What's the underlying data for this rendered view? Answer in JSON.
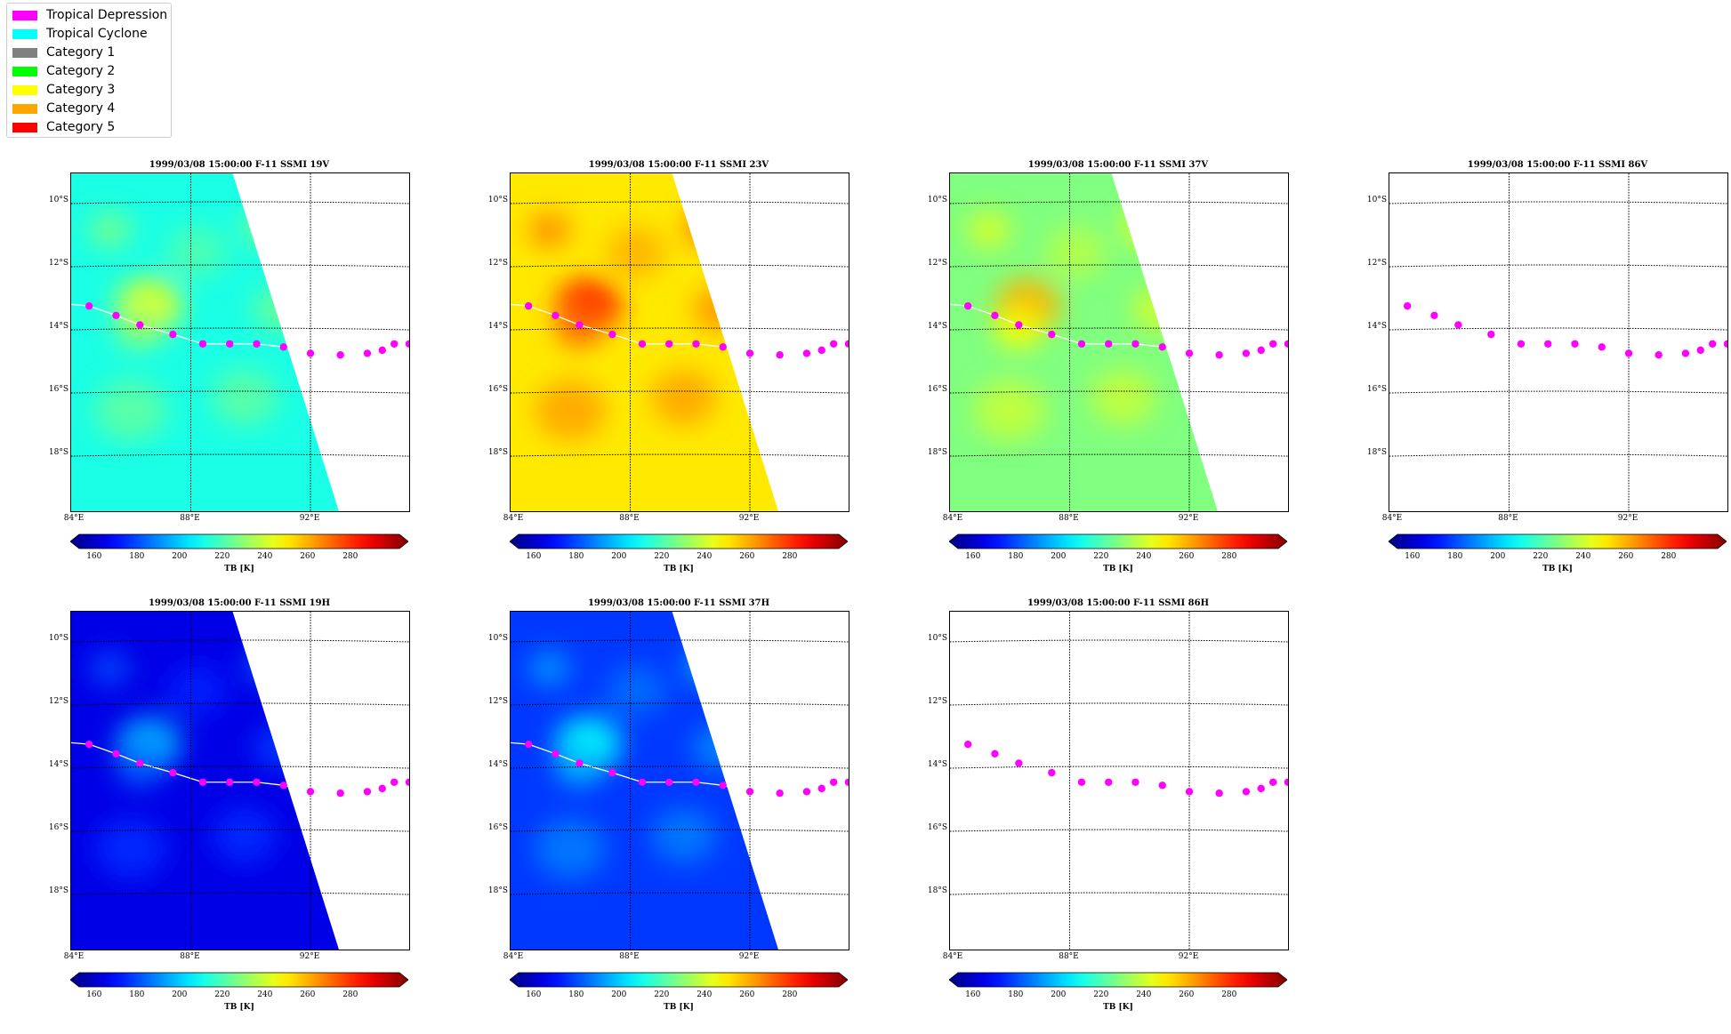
{
  "legend": {
    "items": [
      {
        "label": "Tropical Depression",
        "color": "#ff00ff"
      },
      {
        "label": "Tropical Cyclone",
        "color": "#00ffff"
      },
      {
        "label": "Category 1",
        "color": "#808080"
      },
      {
        "label": "Category 2",
        "color": "#00ff00"
      },
      {
        "label": "Category 3",
        "color": "#ffff00"
      },
      {
        "label": "Category 4",
        "color": "#ffa500"
      },
      {
        "label": "Category 5",
        "color": "#ff0000"
      }
    ]
  },
  "map": {
    "lat_labels": [
      "10°S",
      "12°S",
      "14°S",
      "16°S",
      "18°S"
    ],
    "lon_labels": [
      "84°E",
      "88°E",
      "92°E"
    ],
    "lon_range": [
      84,
      95.3
    ],
    "lat_range": [
      -19.8,
      -9.1
    ],
    "lat_grid": [
      -10,
      -12,
      -14,
      -16,
      -18
    ],
    "lon_grid": [
      88,
      92
    ],
    "track": [
      {
        "lon": 84.6,
        "lat": -13.3
      },
      {
        "lon": 85.5,
        "lat": -13.6
      },
      {
        "lon": 86.3,
        "lat": -13.9
      },
      {
        "lon": 87.4,
        "lat": -14.2
      },
      {
        "lon": 88.4,
        "lat": -14.5
      },
      {
        "lon": 89.3,
        "lat": -14.5
      },
      {
        "lon": 90.2,
        "lat": -14.5
      },
      {
        "lon": 91.1,
        "lat": -14.6
      },
      {
        "lon": 92.0,
        "lat": -14.8
      },
      {
        "lon": 93.0,
        "lat": -14.85
      },
      {
        "lon": 93.9,
        "lat": -14.8
      },
      {
        "lon": 94.4,
        "lat": -14.7
      },
      {
        "lon": 94.8,
        "lat": -14.5
      },
      {
        "lon": 95.3,
        "lat": -14.5
      }
    ],
    "track_color": "#ff00ff"
  },
  "colorbar": {
    "ticks": [
      "160",
      "180",
      "200",
      "220",
      "240",
      "260",
      "280"
    ],
    "label": "TB [K]",
    "range": [
      153,
      303
    ]
  },
  "panels": [
    {
      "title": "1999/03/08 15:00:00  F-11 SSMI 19V",
      "base_tb": 213,
      "has_swath": true
    },
    {
      "title": "1999/03/08 15:00:00  F-11 SSMI 23V",
      "base_tb": 250,
      "has_swath": true
    },
    {
      "title": "1999/03/08 15:00:00  F-11 SSMI 37V",
      "base_tb": 228,
      "has_swath": true
    },
    {
      "title": "1999/03/08 15:00:00  F-11 SSMI 86V",
      "base_tb": null,
      "has_swath": false
    },
    {
      "title": "1999/03/08 15:00:00  F-11 SSMI 19H",
      "base_tb": 168,
      "has_swath": true
    },
    {
      "title": "1999/03/08 15:00:00  F-11 SSMI 37H",
      "base_tb": 180,
      "has_swath": true
    },
    {
      "title": "1999/03/08 15:00:00  F-11 SSMI 86H",
      "base_tb": null,
      "has_swath": false
    }
  ]
}
